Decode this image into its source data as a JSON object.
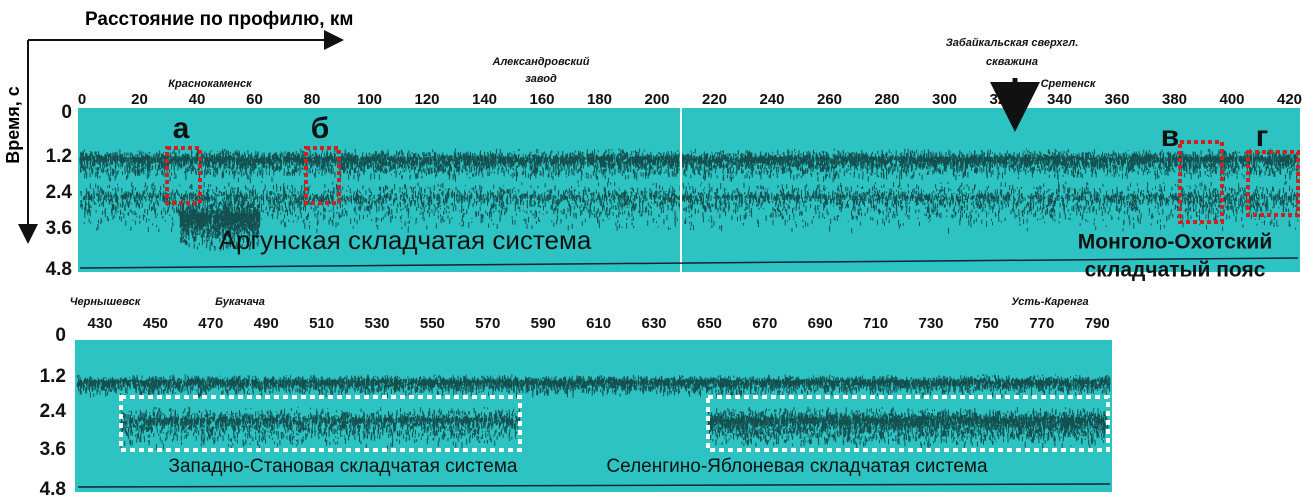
{
  "axis_labels": {
    "x": "Расстояние по профилю, км",
    "y": "Время, с"
  },
  "top_panel": {
    "xticks": [
      "0",
      "20",
      "40",
      "60",
      "80",
      "100",
      "120",
      "140",
      "160",
      "180",
      "200",
      "220",
      "240",
      "260",
      "280",
      "300",
      "320",
      "340",
      "360",
      "380",
      "400",
      "420"
    ],
    "yticks": [
      "0",
      "1.2",
      "2.4",
      "3.6",
      "4.8"
    ],
    "places": [
      [
        "Краснокаменск"
      ],
      [
        "Александровский",
        "завод"
      ],
      [
        "Забайкальская сверхгл.",
        "скважина"
      ],
      [
        "Сретенск"
      ]
    ],
    "letters": [
      "а",
      "б",
      "в",
      "г"
    ],
    "region": "Аргунская складчатая система",
    "region2": [
      "Монголо-Охотский",
      "складчатый пояс"
    ]
  },
  "bottom_panel": {
    "xticks": [
      "430",
      "450",
      "470",
      "490",
      "510",
      "530",
      "550",
      "570",
      "590",
      "610",
      "630",
      "650",
      "670",
      "690",
      "710",
      "730",
      "750",
      "770",
      "790"
    ],
    "yticks": [
      "0",
      "1.2",
      "2.4",
      "3.6",
      "4.8"
    ],
    "places": [
      "Чернышевск",
      "Букачача",
      "Усть-Каренга"
    ],
    "regions": [
      "Западно-Становая складчатая система",
      "Селенгино-Яблоневая складчатая система"
    ]
  }
}
